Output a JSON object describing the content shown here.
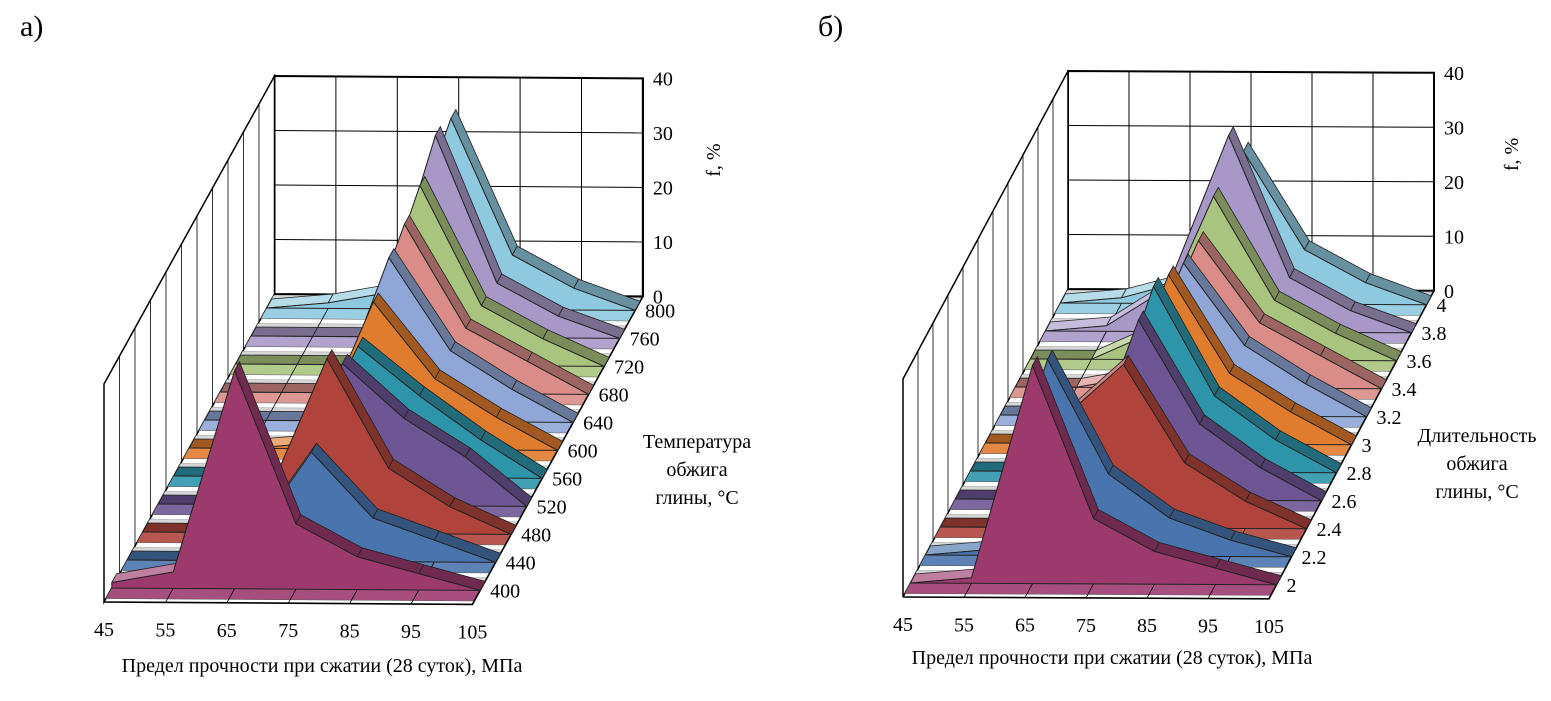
{
  "chart_data": [
    {
      "type": "area",
      "panel_label": "а)",
      "x_categories": [
        "45",
        "55",
        "65",
        "75",
        "85",
        "95",
        "105"
      ],
      "xlabel": "Предел прочности при сжатии (28 суток), МПа",
      "z_ticks": [
        "0",
        "10",
        "20",
        "30",
        "40"
      ],
      "zlabel": "f, %",
      "zlim": [
        0,
        40
      ],
      "depth_tick_labels": [
        "400",
        "440",
        "480",
        "520",
        "560",
        "600",
        "640",
        "680",
        "720",
        "760",
        "800"
      ],
      "depth_label_lines": [
        "Температура",
        "обжига",
        "глины, °С"
      ],
      "series": [
        {
          "name": "400",
          "color": "#9C3A6E",
          "values": [
            1,
            3,
            40,
            12,
            6,
            3,
            0
          ]
        },
        {
          "name": "440",
          "color": "#4A74AE",
          "values": [
            0,
            0,
            4,
            20,
            8,
            4,
            0
          ]
        },
        {
          "name": "480",
          "color": "#B0443C",
          "values": [
            0,
            0,
            6,
            32,
            12,
            5,
            0
          ]
        },
        {
          "name": "520",
          "color": "#6E5694",
          "values": [
            0,
            0,
            2,
            26,
            16,
            9,
            0
          ]
        },
        {
          "name": "560",
          "color": "#2E94AA",
          "values": [
            0,
            0,
            1,
            24,
            15,
            7,
            0
          ]
        },
        {
          "name": "600",
          "color": "#E07C2E",
          "values": [
            0,
            0,
            1,
            27,
            13,
            6,
            0
          ]
        },
        {
          "name": "640",
          "color": "#8FA6D6",
          "values": [
            0,
            0,
            0,
            30,
            13,
            6,
            0
          ]
        },
        {
          "name": "680",
          "color": "#D98C88",
          "values": [
            0,
            0,
            0,
            31,
            12,
            6,
            0
          ]
        },
        {
          "name": "720",
          "color": "#A9C47E",
          "values": [
            0,
            0,
            0,
            33,
            11,
            5,
            0
          ]
        },
        {
          "name": "760",
          "color": "#A898C8",
          "values": [
            0,
            0,
            0,
            37,
            10,
            4,
            0
          ]
        },
        {
          "name": "800",
          "color": "#8FC9DF",
          "values": [
            0,
            1,
            3,
            35,
            10,
            4,
            0
          ]
        }
      ]
    },
    {
      "type": "area",
      "panel_label": "б)",
      "x_categories": [
        "45",
        "55",
        "65",
        "75",
        "85",
        "95",
        "105"
      ],
      "xlabel": "Предел прочности при сжатии (28 суток), МПа",
      "z_ticks": [
        "0",
        "10",
        "20",
        "30",
        "40"
      ],
      "zlabel": "f, %",
      "zlim": [
        0,
        40
      ],
      "depth_tick_labels": [
        "2",
        "2.2",
        "2.4",
        "2.6",
        "2.8",
        "3",
        "3.2",
        "3.4",
        "3.6",
        "3.8",
        "4"
      ],
      "depth_label_lines": [
        "Длительность",
        "обжига",
        "глины, °С"
      ],
      "series": [
        {
          "name": "2",
          "color": "#9C3A6E",
          "values": [
            0,
            1,
            40,
            12,
            6,
            3,
            0
          ]
        },
        {
          "name": "2.2",
          "color": "#4A74AE",
          "values": [
            0,
            1,
            36,
            15,
            7,
            3,
            0
          ]
        },
        {
          "name": "2.4",
          "color": "#B0443C",
          "values": [
            0,
            0,
            20,
            30,
            12,
            5,
            0
          ]
        },
        {
          "name": "2.6",
          "color": "#6E5694",
          "values": [
            0,
            0,
            3,
            33,
            14,
            6,
            0
          ]
        },
        {
          "name": "2.8",
          "color": "#2E94AA",
          "values": [
            0,
            0,
            2,
            34,
            14,
            6,
            0
          ]
        },
        {
          "name": "3",
          "color": "#E07C2E",
          "values": [
            0,
            0,
            2,
            31,
            13,
            6,
            0
          ]
        },
        {
          "name": "3.2",
          "color": "#8FA6D6",
          "values": [
            0,
            0,
            2,
            28,
            13,
            6,
            0
          ]
        },
        {
          "name": "3.4",
          "color": "#D98C88",
          "values": [
            0,
            0,
            2,
            27,
            12,
            6,
            0
          ]
        },
        {
          "name": "3.6",
          "color": "#A9C47E",
          "values": [
            0,
            0,
            5,
            30,
            11,
            5,
            0
          ]
        },
        {
          "name": "3.8",
          "color": "#A898C8",
          "values": [
            0,
            1,
            8,
            36,
            10,
            4,
            0
          ]
        },
        {
          "name": "4",
          "color": "#8FC9DF",
          "values": [
            0,
            1,
            4,
            28,
            10,
            4,
            0
          ]
        }
      ]
    }
  ]
}
